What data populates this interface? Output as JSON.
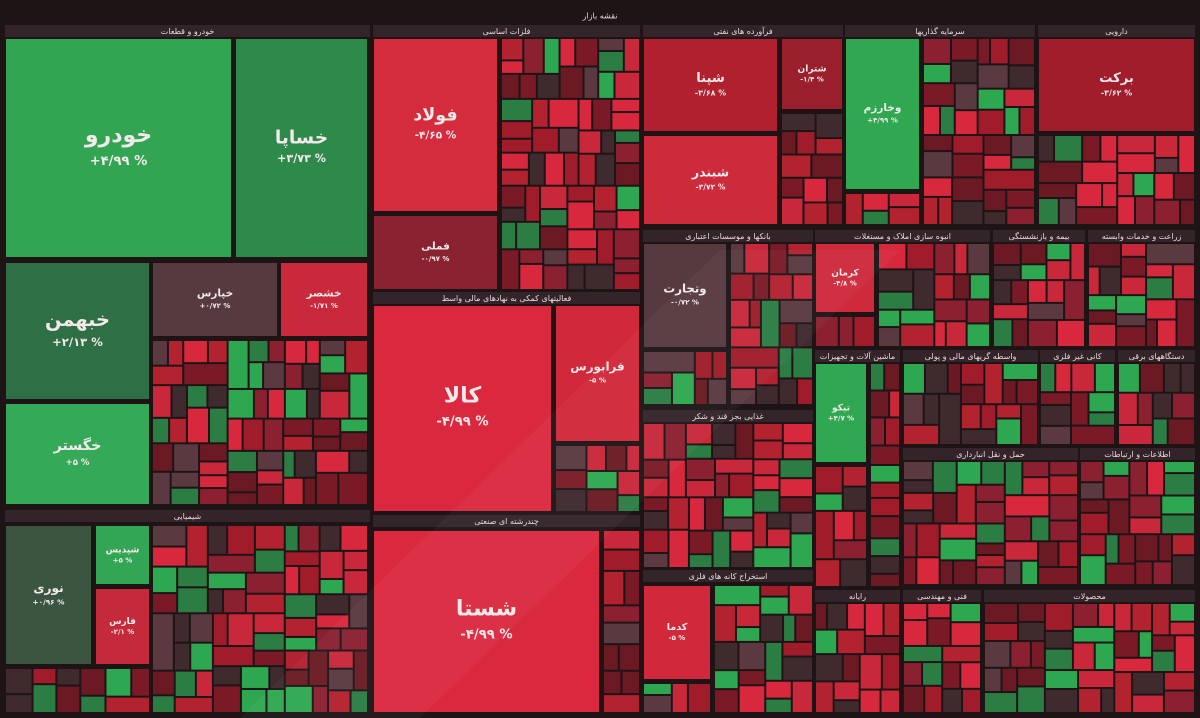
{
  "title": "نقشه بازار",
  "sectors": [
    {
      "name": "خودرو و قطعات",
      "tiles": [
        {
          "symbol": "خودرو",
          "change": "+۴/۹۹ %",
          "color": "#32a553"
        },
        {
          "symbol": "خساپا",
          "change": "+۳/۷۳ %",
          "color": "#2e8a4a"
        },
        {
          "symbol": "خبهمن",
          "change": "+۲/۱۳ %",
          "color": "#2f6f45"
        },
        {
          "symbol": "خگستر",
          "change": "+۵ %",
          "color": "#34a957"
        },
        {
          "symbol": "خپارس",
          "change": "+۰/۷۲ %",
          "color": "#573a40"
        },
        {
          "symbol": "خشصر",
          "change": "-۱/۷۱ %",
          "color": "#c9293b"
        }
      ]
    },
    {
      "name": "شیمیایی",
      "tiles": [
        {
          "symbol": "نوری",
          "change": "+۰/۹۶ %",
          "color": "#3b5541"
        },
        {
          "symbol": "شپدیس",
          "change": "+۵ %",
          "color": "#33a655"
        },
        {
          "symbol": "فارس",
          "change": "-۲/۱ %",
          "color": "#c42a3a"
        }
      ]
    },
    {
      "name": "فلزات اساسی",
      "tiles": [
        {
          "symbol": "فولاد",
          "change": "-۴/۶۵ %",
          "color": "#d42b3d"
        },
        {
          "symbol": "فملی",
          "change": "-۰/۹۷ %",
          "color": "#8a2232"
        }
      ]
    },
    {
      "name": "فعالیتهای کمکی به نهادهای مالی واسط",
      "tiles": [
        {
          "symbol": "کالا",
          "change": "-۴/۹۹ %",
          "color": "#da293f"
        },
        {
          "symbol": "فرابورس",
          "change": "-۵ %",
          "color": "#d1283b"
        }
      ]
    },
    {
      "name": "چندرشته ای صنعتی",
      "tiles": [
        {
          "symbol": "شستا",
          "change": "-۴/۹۹ %",
          "color": "#da293f"
        }
      ]
    },
    {
      "name": "فرآورده های نفتی",
      "tiles": [
        {
          "symbol": "شپنا",
          "change": "-۳/۶۸ %",
          "color": "#b0202f"
        },
        {
          "symbol": "شبندر",
          "change": "-۳/۷۲ %",
          "color": "#cd2a3b"
        },
        {
          "symbol": "شتران",
          "change": "-۱/۴ %",
          "color": "#9a1f2d"
        }
      ]
    },
    {
      "name": "سرمایه گذاریها",
      "tiles": [
        {
          "symbol": "وخارزم",
          "change": "+۴/۹۹ %",
          "color": "#2fa851"
        }
      ]
    },
    {
      "name": "دارویی",
      "tiles": [
        {
          "symbol": "برکت",
          "change": "-۳/۶۲ %",
          "color": "#a11d2b"
        }
      ]
    },
    {
      "name": "بانکها و موسسات اعتباری",
      "tiles": [
        {
          "symbol": "وتجارت",
          "change": "-۰/۷۲ %",
          "color": "#573a40"
        }
      ]
    },
    {
      "name": "غذایی بجز قند و شکر",
      "tiles": []
    },
    {
      "name": "استخراج کانه های فلزی",
      "tiles": [
        {
          "symbol": "کدما",
          "change": "-۵ %",
          "color": "#d1283b"
        }
      ]
    },
    {
      "name": "انبوه سازی املاک و مستغلات",
      "tiles": [
        {
          "symbol": "کرمان",
          "change": "-۴/۸ %",
          "color": "#cf2a3c"
        }
      ]
    },
    {
      "name": "بیمه و بازنشستگی",
      "tiles": []
    },
    {
      "name": "زراعت و خدمات وابسته",
      "tiles": []
    },
    {
      "name": "ماشین آلات و تجهیزات",
      "tiles": [
        {
          "symbol": "تیکو",
          "change": "+۴/۷ %",
          "color": "#2fa851"
        }
      ]
    },
    {
      "name": "واسطه گریهای مالی و پولی",
      "tiles": []
    },
    {
      "name": "کانی غیر فلزی",
      "tiles": []
    },
    {
      "name": "دستگاههای برقی",
      "tiles": []
    },
    {
      "name": "حمل و نقل انبارداری",
      "tiles": []
    },
    {
      "name": "اطلاعات و ارتباطات",
      "tiles": []
    },
    {
      "name": "رایانه",
      "tiles": []
    },
    {
      "name": "فنی و مهندسی",
      "tiles": []
    },
    {
      "name": "محصولات",
      "tiles": []
    }
  ]
}
